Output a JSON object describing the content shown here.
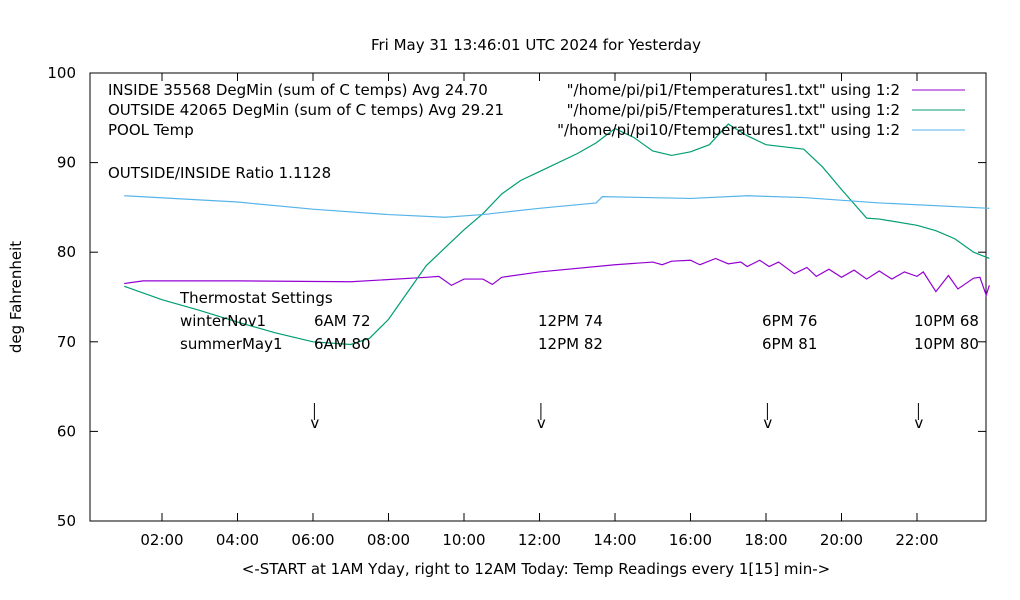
{
  "chart_data": {
    "type": "line",
    "title": "Fri May 31 13:46:01 UTC 2024 for Yesterday",
    "xlabel": "<-START at 1AM Yday, right to 12AM Today:  Temp Readings every 1[15] min->",
    "ylabel": "deg Fahrenheit",
    "ylim": [
      50,
      100
    ],
    "xlim": [
      "00:05",
      "23:55"
    ],
    "yticks": [
      "50",
      "60",
      "70",
      "80",
      "90",
      "100"
    ],
    "xticks": [
      "02:00",
      "04:00",
      "06:00",
      "08:00",
      "10:00",
      "12:00",
      "14:00",
      "16:00",
      "18:00",
      "20:00",
      "22:00"
    ],
    "grid": false,
    "legend_position": "top-right",
    "series": [
      {
        "name": "INSIDE 35568 DegMin (sum of C temps) Avg 24.70",
        "legend_source": "\"/home/pi/pi1/Ftemperatures1.txt\" using 1:2",
        "color": "#9400d3",
        "points": [
          [
            "01:00",
            76.5
          ],
          [
            "01:30",
            76.8
          ],
          [
            "04:00",
            76.8
          ],
          [
            "07:00",
            76.7
          ],
          [
            "09:00",
            77.2
          ],
          [
            "09:20",
            77.3
          ],
          [
            "09:40",
            76.3
          ],
          [
            "10:00",
            77.0
          ],
          [
            "10:30",
            77.0
          ],
          [
            "10:45",
            76.4
          ],
          [
            "11:00",
            77.2
          ],
          [
            "12:00",
            77.8
          ],
          [
            "14:00",
            78.6
          ],
          [
            "15:00",
            78.9
          ],
          [
            "15:15",
            78.6
          ],
          [
            "15:30",
            79.0
          ],
          [
            "16:00",
            79.1
          ],
          [
            "16:15",
            78.6
          ],
          [
            "16:40",
            79.3
          ],
          [
            "17:00",
            78.7
          ],
          [
            "17:20",
            78.9
          ],
          [
            "17:30",
            78.4
          ],
          [
            "17:50",
            79.1
          ],
          [
            "18:05",
            78.4
          ],
          [
            "18:20",
            78.9
          ],
          [
            "18:45",
            77.6
          ],
          [
            "19:05",
            78.3
          ],
          [
            "19:20",
            77.3
          ],
          [
            "19:40",
            78.1
          ],
          [
            "20:00",
            77.2
          ],
          [
            "20:20",
            78.0
          ],
          [
            "20:40",
            77.0
          ],
          [
            "21:00",
            77.9
          ],
          [
            "21:20",
            77.0
          ],
          [
            "21:40",
            77.8
          ],
          [
            "22:00",
            77.3
          ],
          [
            "22:10",
            77.8
          ],
          [
            "22:30",
            75.6
          ],
          [
            "22:50",
            77.4
          ],
          [
            "23:05",
            75.9
          ],
          [
            "23:30",
            77.1
          ],
          [
            "23:40",
            77.2
          ],
          [
            "23:50",
            75.2
          ],
          [
            "23:55",
            76.3
          ]
        ]
      },
      {
        "name": "OUTSIDE 42065 DegMin (sum of C temps) Avg 29.21",
        "legend_source": "\"/home/pi/pi5/Ftemperatures1.txt\" using 1:2",
        "color": "#009e73",
        "points": [
          [
            "01:00",
            76.2
          ],
          [
            "02:00",
            74.7
          ],
          [
            "03:00",
            73.5
          ],
          [
            "04:00",
            72.2
          ],
          [
            "05:00",
            71.0
          ],
          [
            "06:00",
            70.0
          ],
          [
            "07:00",
            69.7
          ],
          [
            "07:30",
            70.4
          ],
          [
            "08:00",
            72.5
          ],
          [
            "08:30",
            75.5
          ],
          [
            "09:00",
            78.5
          ],
          [
            "09:30",
            80.5
          ],
          [
            "10:00",
            82.5
          ],
          [
            "10:30",
            84.3
          ],
          [
            "11:00",
            86.5
          ],
          [
            "11:30",
            88.0
          ],
          [
            "12:00",
            89.0
          ],
          [
            "13:00",
            91.0
          ],
          [
            "13:30",
            92.2
          ],
          [
            "14:00",
            93.8
          ],
          [
            "14:30",
            92.8
          ],
          [
            "15:00",
            91.3
          ],
          [
            "15:30",
            90.8
          ],
          [
            "16:00",
            91.2
          ],
          [
            "16:30",
            92.0
          ],
          [
            "17:00",
            94.3
          ],
          [
            "17:30",
            93.0
          ],
          [
            "18:00",
            92.0
          ],
          [
            "19:00",
            91.5
          ],
          [
            "19:30",
            89.5
          ],
          [
            "20:00",
            87.0
          ],
          [
            "20:40",
            83.8
          ],
          [
            "21:00",
            83.7
          ],
          [
            "22:00",
            83.0
          ],
          [
            "22:30",
            82.4
          ],
          [
            "23:00",
            81.5
          ],
          [
            "23:30",
            80.0
          ],
          [
            "23:55",
            79.3
          ]
        ]
      },
      {
        "name": "POOL Temp",
        "legend_source": "\"/home/pi/pi10/Ftemperatures1.txt\" using 1:2",
        "color": "#56b4e9",
        "points": [
          [
            "01:00",
            86.3
          ],
          [
            "04:00",
            85.6
          ],
          [
            "06:00",
            84.8
          ],
          [
            "08:00",
            84.2
          ],
          [
            "09:30",
            83.9
          ],
          [
            "10:30",
            84.2
          ],
          [
            "12:00",
            84.9
          ],
          [
            "13:30",
            85.5
          ],
          [
            "13:40",
            86.2
          ],
          [
            "16:00",
            86.0
          ],
          [
            "17:30",
            86.3
          ],
          [
            "19:00",
            86.1
          ],
          [
            "21:00",
            85.5
          ],
          [
            "23:55",
            84.9
          ]
        ]
      }
    ],
    "annotations": {
      "ratio": "OUTSIDE/INSIDE Ratio 1.1128",
      "thermostat_title": "Thermostat Settings",
      "rows": [
        {
          "label": "winterNov1",
          "values": [
            "6AM 72",
            "12PM 74",
            "6PM 76",
            "10PM 68"
          ]
        },
        {
          "label": "summerMay1",
          "values": [
            "6AM 80",
            "12PM 82",
            "6PM 81",
            "10PM 80"
          ]
        }
      ],
      "arrow_label": "v",
      "arrow_times": [
        "06:07",
        "12:07",
        "18:07",
        "22:07"
      ]
    }
  }
}
